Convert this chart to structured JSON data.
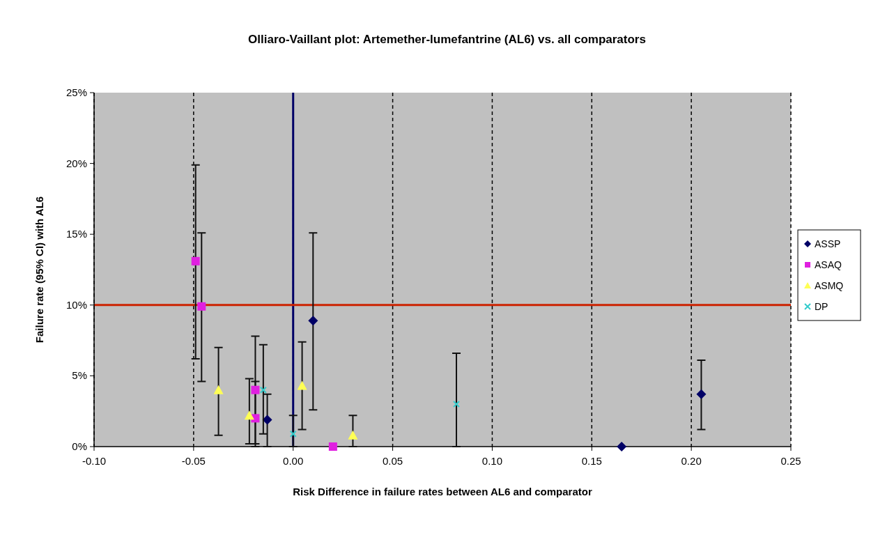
{
  "chart_data": {
    "type": "scatter",
    "title": "Olliaro-Vaillant plot: Artemether-lumefantrine (AL6) vs. all comparators",
    "xlabel": "Risk Difference in failure rates between AL6 and comparator",
    "ylabel": "Failure rate (95% CI) with AL6",
    "xlim": [
      -0.1,
      0.25
    ],
    "xticks": [
      {
        "value": -0.1,
        "label": "-0.10"
      },
      {
        "value": -0.05,
        "label": "-0.05"
      },
      {
        "value": 0,
        "label": "0.00"
      },
      {
        "value": 0.05,
        "label": "0.05"
      },
      {
        "value": 0.1,
        "label": "0.10"
      },
      {
        "value": 0.15,
        "label": "0.15"
      },
      {
        "value": 0.2,
        "label": "0.20"
      },
      {
        "value": 0.25,
        "label": "0.25"
      }
    ],
    "ylim": [
      0,
      25
    ],
    "yticks": [
      {
        "value": 0,
        "label": "0%"
      },
      {
        "value": 5,
        "label": "5%"
      },
      {
        "value": 10,
        "label": "10%"
      },
      {
        "value": 15,
        "label": "15%"
      },
      {
        "value": 20,
        "label": "20%"
      },
      {
        "value": 25,
        "label": "25%"
      }
    ],
    "grid": "x",
    "legend": "right",
    "ref_lines": [
      {
        "axis": "x",
        "value": 0,
        "color": "#000066"
      },
      {
        "axis": "y",
        "value": 10,
        "color": "#cc2200"
      }
    ],
    "series": [
      {
        "name": "ASSP",
        "color": "#000066",
        "marker": "diamond",
        "x": [
          0.01,
          -0.013,
          0.165,
          0.205
        ],
        "values": [
          8.9,
          1.9,
          0,
          3.7
        ],
        "errors": [
          [
            2.6,
            15.1
          ],
          [
            0,
            3.7
          ],
          null,
          [
            1.2,
            6.1
          ]
        ]
      },
      {
        "name": "ASAQ",
        "color": "#e020e0",
        "marker": "square",
        "x": [
          -0.049,
          -0.046,
          -0.019,
          -0.019,
          0.02
        ],
        "values": [
          13.1,
          9.9,
          4.0,
          2.0,
          0
        ],
        "errors": [
          [
            6.2,
            19.9
          ],
          [
            4.6,
            15.1
          ],
          [
            0,
            7.8
          ],
          [
            0.2,
            4.6
          ],
          null
        ]
      },
      {
        "name": "ASMQ",
        "color": "#ffff55",
        "marker": "triangle",
        "x": [
          -0.0375,
          -0.022,
          0.0045,
          0.03
        ],
        "values": [
          4.0,
          2.2,
          4.3,
          0.8
        ],
        "errors": [
          [
            0.8,
            7.0
          ],
          [
            0.2,
            4.8
          ],
          [
            1.2,
            7.4
          ],
          [
            0,
            2.2
          ]
        ]
      },
      {
        "name": "DP",
        "color": "#33cccc",
        "marker": "cross",
        "x": [
          0.082,
          0,
          -0.015
        ],
        "values": [
          3.0,
          0.9,
          4.0
        ],
        "errors": [
          [
            0,
            6.6
          ],
          [
            0,
            2.2
          ],
          [
            0.9,
            7.2
          ]
        ]
      }
    ]
  }
}
